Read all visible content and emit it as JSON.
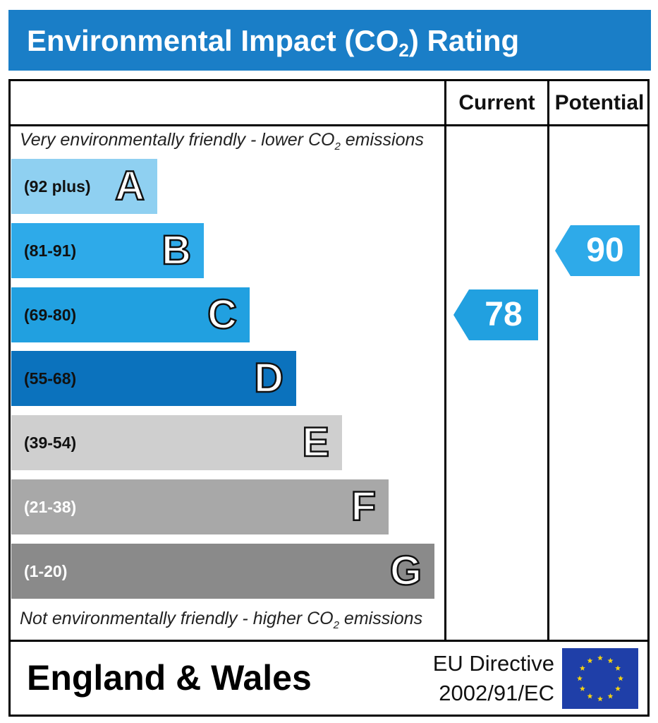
{
  "header": {
    "title_main": "Environmental Impact (CO",
    "title_sub": "2",
    "title_end": ") Rating"
  },
  "columns": {
    "current": "Current",
    "potential": "Potential"
  },
  "notes": {
    "top_main": "Very environmentally friendly - lower CO",
    "top_sub": "2",
    "top_end": " emissions",
    "bottom_main": "Not environmentally friendly - higher CO",
    "bottom_sub": "2",
    "bottom_end": " emissions"
  },
  "chart_data": {
    "type": "bar",
    "categories": [
      "A",
      "B",
      "C",
      "D",
      "E",
      "F",
      "G"
    ],
    "ranges": [
      "(92 plus)",
      "(81-91)",
      "(69-80)",
      "(55-68)",
      "(39-54)",
      "(21-38)",
      "(1-20)"
    ],
    "band_colors": [
      "#8fd0f1",
      "#2eaae9",
      "#21a0e0",
      "#0b72bd",
      "#cfcfcf",
      "#a8a8a8",
      "#8a8a8a"
    ],
    "range_text_colors": [
      "#111111",
      "#111111",
      "#111111",
      "#111111",
      "#111111",
      "#ffffff",
      "#ffffff"
    ],
    "current": {
      "value": 78,
      "band": "C",
      "color": "#21a0e0"
    },
    "potential": {
      "value": 90,
      "band": "B",
      "color": "#2eaae9"
    }
  },
  "footer": {
    "region": "England & Wales",
    "directive_line1": "EU Directive",
    "directive_line2": "2002/91/EC",
    "flag": "eu-flag-icon",
    "flag_color": "#1f3fa8",
    "star_color": "#f2d214"
  }
}
